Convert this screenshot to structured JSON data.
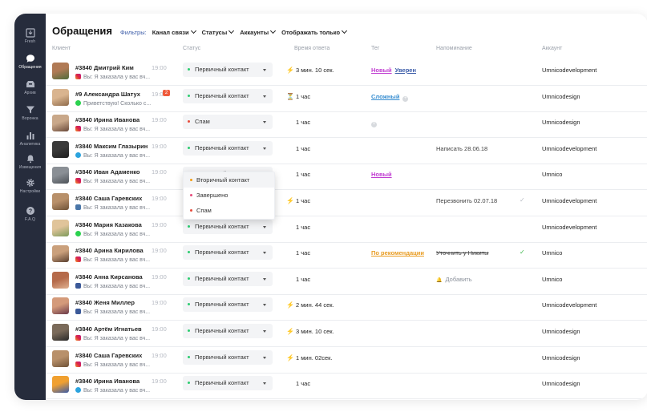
{
  "sidebar": {
    "items": [
      {
        "label": "Fresh",
        "icon": "inbox-icon",
        "active": false
      },
      {
        "label": "Обращения",
        "icon": "chat-bubble-icon",
        "active": true
      },
      {
        "label": "Архив",
        "icon": "archive-icon",
        "active": false
      },
      {
        "label": "Воронка",
        "icon": "funnel-icon",
        "active": false
      },
      {
        "label": "Аналитика",
        "icon": "bar-chart-icon",
        "active": false
      },
      {
        "label": "Извещения",
        "icon": "bell-icon",
        "active": false
      },
      {
        "label": "Настройки",
        "icon": "gear-icon",
        "active": false
      },
      {
        "label": "F.A.Q",
        "icon": "help-icon",
        "active": false
      }
    ]
  },
  "header": {
    "title": "Обращения",
    "filters_label": "Фильтры:",
    "filters": [
      "Канал связи",
      "Статусы",
      "Аккаунты",
      "Отображать только"
    ]
  },
  "columns": {
    "client": "Клиент",
    "status": "Статус",
    "response_time": "Время ответа",
    "tag": "Тег",
    "reminder": "Напоминание",
    "account": "Аккаунт"
  },
  "colors": {
    "status_primary": "#2ecc71",
    "status_spam": "#e74c3c",
    "status_secondary": "#f39c12",
    "status_done": "#e84a7a",
    "tag_new": "#c03dd1",
    "tag_sure": "#3a5ba8",
    "tag_hard": "#3a8fd1",
    "tag_recommend": "#e89b20"
  },
  "rows": [
    {
      "name": "#3840 Дмитрий Ким",
      "time": "19:00",
      "unread": "",
      "channel": "instagram",
      "message": "Вы: Я заказала у вас вч...",
      "status": "Первичный контакт",
      "status_color": "#2ecc71",
      "resp_icon": "lightning-icon",
      "resp": "3 мин. 10 сек.",
      "tags": [
        {
          "text": "Новый",
          "color": "#c03dd1"
        },
        {
          "text": "Уверен",
          "color": "#3a5ba8"
        }
      ],
      "tag_add": false,
      "reminder": "",
      "reminder_style": "",
      "check": "",
      "account": "Umnicodevelopment",
      "avatar": [
        "#b07a55",
        "#4e6b3a"
      ]
    },
    {
      "name": "#9 Александра Шатух",
      "time": "19:00",
      "unread": "2",
      "channel": "whatsapp",
      "message": "Приветствую! Сколько с...",
      "status": "Первичный контакт",
      "status_color": "#2ecc71",
      "resp_icon": "hourglass-icon",
      "resp": "1 час",
      "tags": [
        {
          "text": "Сложный",
          "color": "#3a8fd1"
        }
      ],
      "tag_add": true,
      "reminder": "",
      "reminder_style": "",
      "check": "",
      "account": "Umnicodesign",
      "avatar": [
        "#d9b48f",
        "#8e6a4a"
      ]
    },
    {
      "name": "#3840 Ирина Иванова",
      "time": "19:00",
      "unread": "",
      "channel": "instagram",
      "message": "Вы: Я заказала у вас вч...",
      "status": "Спам",
      "status_color": "#e74c3c",
      "resp_icon": "",
      "resp": "1 час",
      "tags": [],
      "tag_add": true,
      "reminder": "",
      "reminder_style": "",
      "check": "",
      "account": "Umnicodesign",
      "avatar": [
        "#c9a88a",
        "#6a4a3a"
      ]
    },
    {
      "name": "#3840 Максим Глазырин",
      "time": "19:00",
      "unread": "",
      "channel": "telegram",
      "message": "Вы: Я заказала у вас вч...",
      "status": "Первичный контакт",
      "status_color": "#2ecc71",
      "resp_icon": "",
      "resp": "1 час",
      "tags": [],
      "tag_add": false,
      "reminder": "Написать 28.06.18",
      "reminder_style": "",
      "check": "",
      "account": "Umnicodevelopment",
      "avatar": [
        "#3a3a3a",
        "#1e1e1e"
      ]
    },
    {
      "name": "#3840 Иван Адаменко",
      "time": "19:00",
      "unread": "",
      "channel": "instagram",
      "message": "Вы: Я заказала у вас вч...",
      "status": "Первичный контакт",
      "status_color": "#2ecc71",
      "resp_icon": "",
      "resp": "1 час",
      "tags": [
        {
          "text": "Новый",
          "color": "#c03dd1"
        }
      ],
      "tag_add": false,
      "reminder": "",
      "reminder_style": "",
      "check": "",
      "account": "Umnico",
      "avatar": [
        "#8a8f95",
        "#4d5258"
      ]
    },
    {
      "name": "#3840 Саша Гаревских",
      "time": "19:00",
      "unread": "",
      "channel": "vk",
      "message": "Вы: Я заказала у вас вч...",
      "status": "Первичный контакт",
      "status_color": "#2ecc71",
      "resp_icon": "lightning-icon",
      "resp": "1 час",
      "tags": [],
      "tag_add": false,
      "reminder": "Перезвонить 02.07.18",
      "reminder_style": "",
      "check": "pending",
      "account": "Umnicodevelopment",
      "avatar": [
        "#b8906a",
        "#6e5238"
      ]
    },
    {
      "name": "#3840 Мария Казакова",
      "time": "19:00",
      "unread": "",
      "channel": "whatsapp",
      "message": "Вы: Я заказала у вас вч...",
      "status": "Первичный контакт",
      "status_color": "#2ecc71",
      "resp_icon": "",
      "resp": "1 час",
      "tags": [],
      "tag_add": false,
      "reminder": "",
      "reminder_style": "",
      "check": "",
      "account": "Umnicodevelopment",
      "avatar": [
        "#e0c49a",
        "#7d9a5a"
      ]
    },
    {
      "name": "#3840 Арина Кирилова",
      "time": "19:00",
      "unread": "",
      "channel": "instagram",
      "message": "Вы: Я заказала у вас вч...",
      "status": "Первичный контакт",
      "status_color": "#2ecc71",
      "resp_icon": "",
      "resp": "1 час",
      "tags": [
        {
          "text": "По рекомендации",
          "color": "#e89b20"
        }
      ],
      "tag_add": false,
      "reminder": "Уточнить у Никиты",
      "reminder_style": "strike",
      "check": "done",
      "account": "Umnico",
      "avatar": [
        "#caa07c",
        "#5a4030"
      ]
    },
    {
      "name": "#3840 Анна Кирсанова",
      "time": "19:00",
      "unread": "",
      "channel": "facebook",
      "message": "Вы: Я заказала у вас вч...",
      "status": "Первичный контакт",
      "status_color": "#2ecc71",
      "resp_icon": "",
      "resp": "1 час",
      "tags": [],
      "tag_add": false,
      "reminder": "Добавить",
      "reminder_style": "add",
      "check": "",
      "account": "Umnico",
      "avatar": [
        "#b56a4a",
        "#e0b090"
      ]
    },
    {
      "name": "#3840 Женя Миллер",
      "time": "19:00",
      "unread": "",
      "channel": "facebook",
      "message": "Вы: Я заказала у вас вч...",
      "status": "Первичный контакт",
      "status_color": "#2ecc71",
      "resp_icon": "lightning-icon",
      "resp": "2 мин. 44 сек.",
      "tags": [],
      "tag_add": false,
      "reminder": "",
      "reminder_style": "",
      "check": "",
      "account": "Umnicodevelopment",
      "avatar": [
        "#d49a7a",
        "#6a3a4a"
      ]
    },
    {
      "name": "#3840 Артём Игнатьев",
      "time": "19:00",
      "unread": "",
      "channel": "instagram",
      "message": "Вы: Я заказала у вас вч...",
      "status": "Первичный контакт",
      "status_color": "#2ecc71",
      "resp_icon": "lightning-icon",
      "resp": "3 мин. 10 сек.",
      "tags": [],
      "tag_add": false,
      "reminder": "",
      "reminder_style": "",
      "check": "",
      "account": "Umnicodesign",
      "avatar": [
        "#7a6a5a",
        "#2a2a2a"
      ]
    },
    {
      "name": "#3840 Саша Гаревских",
      "time": "19:00",
      "unread": "",
      "channel": "instagram",
      "message": "Вы: Я заказала у вас вч...",
      "status": "Первичный контакт",
      "status_color": "#2ecc71",
      "resp_icon": "lightning-icon",
      "resp": "1 мин. 02сек.",
      "tags": [],
      "tag_add": false,
      "reminder": "",
      "reminder_style": "",
      "check": "",
      "account": "Umnicodesign",
      "avatar": [
        "#b8906a",
        "#6e5238"
      ]
    },
    {
      "name": "#3840 Ирина Иванова",
      "time": "19:00",
      "unread": "",
      "channel": "telegram",
      "message": "Вы: Я заказала у вас вч...",
      "status": "Первичный контакт",
      "status_color": "#2ecc71",
      "resp_icon": "",
      "resp": "1 час",
      "tags": [],
      "tag_add": false,
      "reminder": "",
      "reminder_style": "",
      "check": "",
      "account": "Umnicodesign",
      "avatar": [
        "#f0a030",
        "#3a5ba8"
      ]
    }
  ],
  "dropdown": {
    "options": [
      {
        "label": "Вторичный контакт",
        "color": "#f39c12"
      },
      {
        "label": "Завершено",
        "color": "#e84a7a"
      },
      {
        "label": "Спам",
        "color": "#e74c3c"
      }
    ]
  }
}
